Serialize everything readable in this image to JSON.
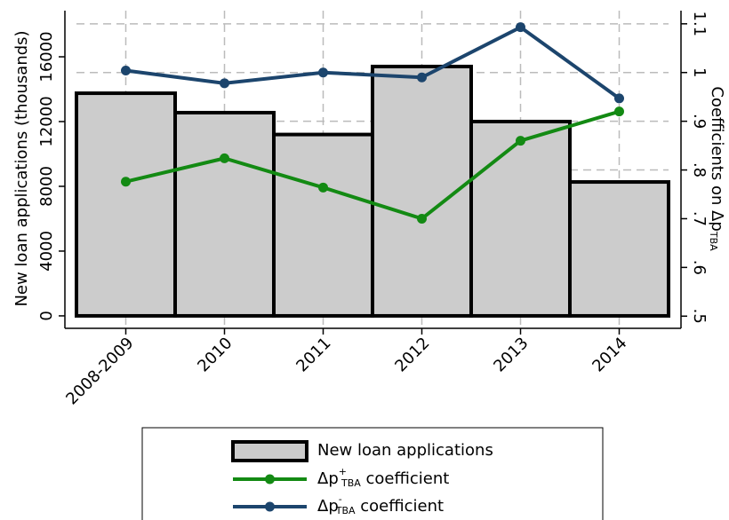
{
  "chart_data": {
    "type": "bar",
    "categories": [
      "2008-2009",
      "2010",
      "2011",
      "2012",
      "2013",
      "2014"
    ],
    "ylabel": "New loan applications (thousands)",
    "y2label": [
      "Coefficients on Δp",
      "TBA"
    ],
    "ylim": [
      -770,
      18850
    ],
    "yticks": [
      0,
      4000,
      8000,
      12000,
      16000
    ],
    "y2lim": [
      0.475,
      1.127
    ],
    "y2ticks": [
      {
        "value": 0.5,
        "label": ".5"
      },
      {
        "value": 0.6,
        "label": ".6"
      },
      {
        "value": 0.7,
        "label": ".7"
      },
      {
        "value": 0.8,
        "label": ".8"
      },
      {
        "value": 0.9,
        "label": ".9"
      },
      1,
      1.1
    ],
    "grid": true,
    "series": [
      {
        "name": "New loan applications",
        "type": "bar",
        "color": "#cccccc",
        "values": [
          13750,
          12550,
          11200,
          15400,
          12000,
          8270
        ]
      },
      {
        "name": [
          "Δp",
          "+",
          "TBA",
          " coefficient"
        ],
        "type": "line",
        "axis": "y2",
        "color": "#138a13",
        "values": [
          0.776,
          0.824,
          0.764,
          0.7,
          0.86,
          0.92
        ]
      },
      {
        "name": [
          "Δp",
          "-",
          "TBA",
          " coefficient"
        ],
        "type": "line",
        "axis": "y2",
        "color": "#1c456d",
        "values": [
          1.004,
          0.978,
          1.0,
          0.99,
          1.093,
          0.947
        ]
      }
    ]
  }
}
